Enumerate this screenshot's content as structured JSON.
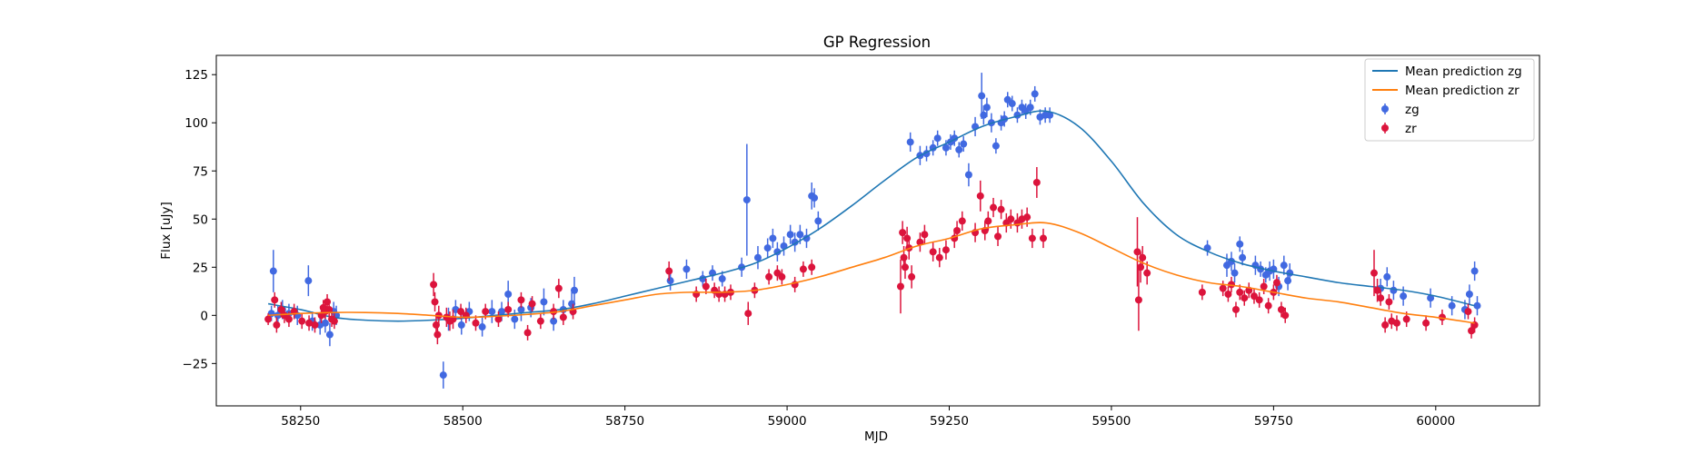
{
  "chart_data": {
    "type": "scatter",
    "title": "GP Regression",
    "xlabel": "MJD",
    "ylabel": "Flux [uJy]",
    "xlim": [
      58120,
      60160
    ],
    "ylim": [
      -47,
      135
    ],
    "xticks": [
      58250,
      58500,
      58750,
      59000,
      59250,
      59500,
      59750,
      60000
    ],
    "yticks": [
      -25,
      0,
      25,
      50,
      75,
      100,
      125
    ],
    "legend_position": "top-right",
    "legend": [
      "Mean prediction zg",
      "Mean prediction zr",
      "zg",
      "zr"
    ],
    "colors": {
      "zg_line": "#1f77b4",
      "zr_line": "#ff7f0e",
      "zg_points": "#4169e1",
      "zr_points": "#dc143c"
    },
    "lines": [
      {
        "name": "Mean prediction zg",
        "x": [
          58200,
          58250,
          58300,
          58350,
          58400,
          58450,
          58500,
          58550,
          58600,
          58650,
          58700,
          58750,
          58800,
          58850,
          58900,
          58950,
          59000,
          59050,
          59100,
          59150,
          59200,
          59250,
          59300,
          59350,
          59400,
          59450,
          59500,
          59550,
          59600,
          59650,
          59700,
          59750,
          59800,
          59850,
          59900,
          59950,
          60000,
          60060
        ],
        "y": [
          6,
          3,
          -1,
          -2.5,
          -3,
          -2.5,
          -1.5,
          0,
          1.5,
          3,
          6,
          10,
          14,
          18,
          22,
          27,
          35,
          45,
          57,
          70,
          82,
          90,
          98,
          103,
          106,
          98,
          80,
          58,
          42,
          33,
          27,
          23,
          20,
          17,
          15,
          13,
          10,
          5
        ]
      },
      {
        "name": "Mean prediction zr",
        "x": [
          58200,
          58250,
          58300,
          58350,
          58400,
          58450,
          58500,
          58550,
          58600,
          58650,
          58700,
          58750,
          58800,
          58850,
          58900,
          58950,
          59000,
          59050,
          59100,
          59150,
          59200,
          59250,
          59300,
          59350,
          59400,
          59450,
          59500,
          59550,
          59600,
          59650,
          59700,
          59750,
          59800,
          59850,
          59900,
          59950,
          60000,
          60060
        ],
        "y": [
          0,
          1,
          1.5,
          1.5,
          1,
          0,
          -1,
          -0.5,
          0.5,
          2,
          5,
          8,
          11,
          12,
          12,
          13,
          16,
          20,
          25,
          30,
          36,
          40,
          45,
          47,
          48,
          43,
          35,
          27,
          21,
          17,
          15,
          12,
          9,
          7,
          4,
          1,
          -1,
          -4
        ]
      }
    ],
    "series": [
      {
        "name": "zg",
        "x": [
          58205,
          58208,
          58215,
          58222,
          58232,
          58245,
          58262,
          58268,
          58280,
          58288,
          58295,
          58301,
          58305,
          58470,
          58478,
          58489,
          58498,
          58510,
          58530,
          58545,
          58560,
          58570,
          58580,
          58590,
          58605,
          58625,
          58640,
          58655,
          58668,
          58672,
          58820,
          58845,
          58870,
          58885,
          58900,
          58930,
          58938,
          58955,
          58970,
          58978,
          58985,
          58995,
          59005,
          59012,
          59020,
          59030,
          59038,
          59042,
          59048,
          59190,
          59205,
          59215,
          59225,
          59232,
          59245,
          59252,
          59258,
          59265,
          59272,
          59280,
          59290,
          59300,
          59303,
          59308,
          59315,
          59322,
          59330,
          59335,
          59340,
          59347,
          59355,
          59362,
          59368,
          59375,
          59382,
          59390,
          59398,
          59405,
          59648,
          59678,
          59685,
          59690,
          59698,
          59702,
          59722,
          59730,
          59738,
          59744,
          59750,
          59758,
          59766,
          59772,
          59775,
          59915,
          59925,
          59935,
          59950,
          59992,
          60025,
          60045,
          60052,
          60060,
          60064
        ],
        "y": [
          1,
          23,
          0,
          3,
          1,
          0,
          18,
          -3,
          -5,
          -4,
          -10,
          2,
          0,
          -31,
          -2,
          3,
          -5,
          2,
          -6,
          2,
          2,
          11,
          -2,
          3,
          4,
          7,
          -3,
          3,
          6,
          13,
          18,
          24,
          19,
          22,
          19,
          25,
          60,
          30,
          35,
          40,
          33,
          36,
          42,
          38,
          42,
          40,
          62,
          61,
          49,
          90,
          83,
          84,
          87,
          92,
          87,
          90,
          92,
          86,
          89,
          73,
          98,
          114,
          104,
          108,
          100,
          88,
          100,
          102,
          112,
          110,
          104,
          108,
          106,
          108,
          115,
          103,
          104,
          104,
          35,
          26,
          28,
          22,
          37,
          30,
          26,
          24,
          21,
          23,
          24,
          15,
          26,
          18,
          22,
          14,
          20,
          13,
          10,
          9,
          5,
          3,
          11,
          23,
          5
        ],
        "yerr": [
          4,
          11,
          5,
          5,
          5,
          5,
          8,
          5,
          5,
          5,
          6,
          5,
          5,
          7,
          6,
          5,
          5,
          5,
          5,
          6,
          5,
          7,
          5,
          6,
          5,
          7,
          5,
          5,
          6,
          7,
          5,
          5,
          4,
          4,
          4,
          5,
          29,
          6,
          5,
          5,
          5,
          5,
          5,
          5,
          5,
          5,
          7,
          5,
          5,
          5,
          5,
          4,
          4,
          4,
          4,
          4,
          4,
          4,
          4,
          6,
          5,
          12,
          5,
          5,
          5,
          4,
          4,
          4,
          4,
          4,
          4,
          4,
          4,
          4,
          4,
          4,
          4,
          4,
          4,
          6,
          5,
          5,
          4,
          4,
          5,
          4,
          4,
          5,
          5,
          5,
          5,
          5,
          5,
          5,
          5,
          5,
          5,
          5,
          5,
          5,
          5,
          5,
          5
        ]
      },
      {
        "name": "zr",
        "x": [
          58200,
          58210,
          58213,
          58220,
          58225,
          58232,
          58240,
          58252,
          58263,
          58272,
          58282,
          58285,
          58288,
          58291,
          58294,
          58298,
          58302,
          58455,
          58457,
          58459,
          58461,
          58463,
          58475,
          58480,
          58485,
          58497,
          58505,
          58520,
          58535,
          58555,
          58570,
          58590,
          58600,
          58607,
          58620,
          58640,
          58648,
          58655,
          58670,
          58818,
          58860,
          58875,
          58888,
          58895,
          58904,
          58913,
          58940,
          58950,
          58972,
          58985,
          58992,
          59012,
          59025,
          59038,
          59175,
          59178,
          59180,
          59182,
          59185,
          59188,
          59192,
          59205,
          59212,
          59225,
          59235,
          59245,
          59258,
          59262,
          59270,
          59290,
          59298,
          59305,
          59310,
          59318,
          59325,
          59330,
          59338,
          59345,
          59355,
          59362,
          59370,
          59378,
          59385,
          59395,
          59540,
          59542,
          59545,
          59548,
          59555,
          59640,
          59672,
          59680,
          59685,
          59692,
          59698,
          59705,
          59712,
          59720,
          59728,
          59735,
          59742,
          59750,
          59755,
          59762,
          59768,
          59905,
          59910,
          59915,
          59922,
          59928,
          59932,
          59940,
          59955,
          59985,
          60010,
          60050,
          60055,
          60060
        ],
        "y": [
          -2,
          8,
          -5,
          3,
          0,
          -2,
          2,
          -3,
          -4,
          -5,
          0,
          4,
          2,
          7,
          3,
          -2,
          -3,
          16,
          7,
          -5,
          -10,
          0,
          -1,
          -3,
          -2,
          2,
          0,
          -4,
          2,
          -2,
          3,
          8,
          -9,
          6,
          -3,
          2,
          14,
          -1,
          2,
          23,
          11,
          15,
          13,
          11,
          11,
          12,
          1,
          13,
          20,
          22,
          20,
          16,
          24,
          25,
          15,
          43,
          30,
          25,
          40,
          35,
          20,
          38,
          42,
          33,
          30,
          34,
          40,
          44,
          49,
          43,
          62,
          44,
          49,
          56,
          41,
          55,
          48,
          50,
          48,
          50,
          51,
          40,
          69,
          40,
          33,
          8,
          25,
          30,
          22,
          12,
          14,
          11,
          16,
          3,
          12,
          9,
          13,
          10,
          8,
          15,
          5,
          12,
          17,
          3,
          0,
          22,
          13,
          9,
          -5,
          7,
          -3,
          -4,
          -2,
          -4,
          -1,
          2,
          -8,
          -5
        ],
        "yerr": [
          3,
          4,
          4,
          4,
          4,
          4,
          4,
          4,
          4,
          4,
          4,
          4,
          4,
          4,
          4,
          4,
          4,
          6,
          5,
          5,
          5,
          5,
          5,
          5,
          5,
          4,
          4,
          4,
          4,
          4,
          4,
          4,
          4,
          4,
          4,
          4,
          5,
          4,
          4,
          5,
          4,
          4,
          4,
          4,
          4,
          4,
          6,
          4,
          4,
          4,
          4,
          4,
          4,
          4,
          14,
          6,
          6,
          6,
          6,
          6,
          6,
          5,
          5,
          5,
          5,
          5,
          5,
          5,
          5,
          5,
          8,
          5,
          5,
          5,
          5,
          5,
          5,
          5,
          5,
          5,
          5,
          5,
          8,
          5,
          18,
          16,
          8,
          6,
          6,
          4,
          4,
          4,
          4,
          4,
          4,
          4,
          4,
          4,
          4,
          4,
          4,
          4,
          4,
          4,
          4,
          12,
          6,
          4,
          4,
          4,
          4,
          4,
          4,
          4,
          4,
          4,
          4,
          4
        ]
      }
    ]
  }
}
